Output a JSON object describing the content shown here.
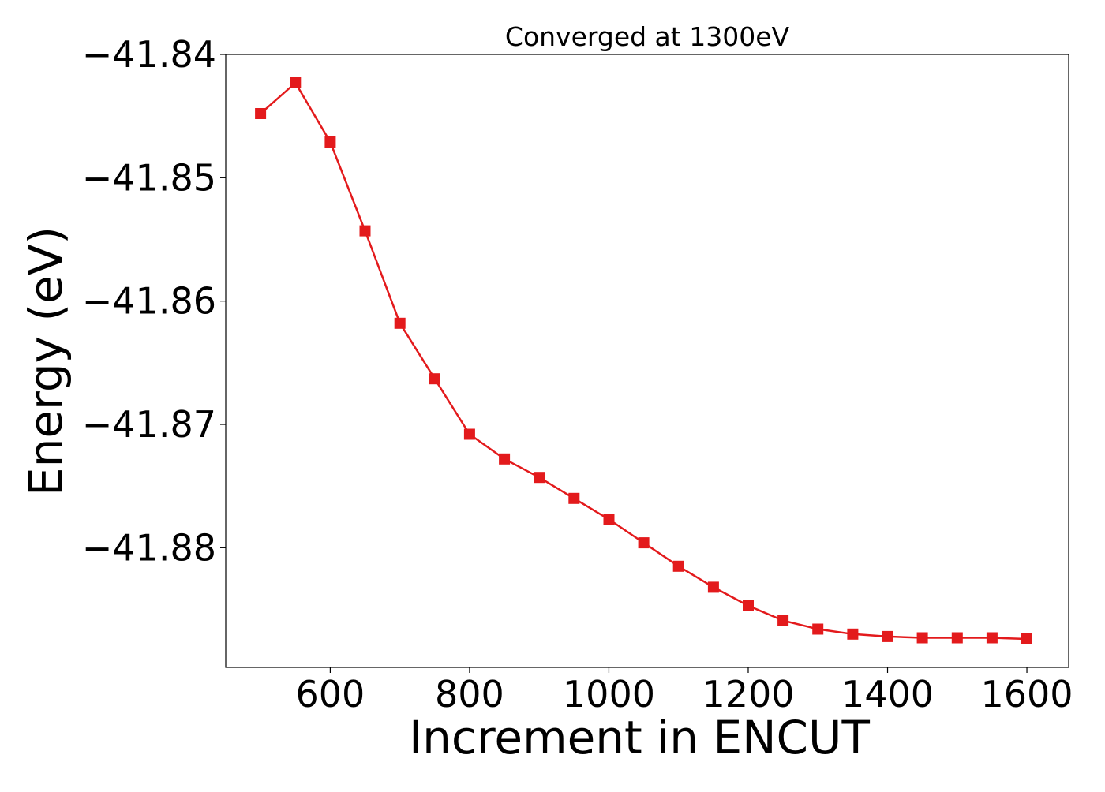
{
  "chart_data": {
    "type": "line",
    "title": "Converged at 1300eV",
    "xlabel": "Increment in ENCUT",
    "ylabel": "Energy (eV)",
    "xlim": [
      450,
      1660
    ],
    "ylim": [
      -41.8897,
      -41.84
    ],
    "x_ticks": [
      600,
      800,
      1000,
      1200,
      1400,
      1600
    ],
    "x_tick_labels": [
      "600",
      "800",
      "1000",
      "1200",
      "1400",
      "1600"
    ],
    "y_ticks": [
      -41.84,
      -41.85,
      -41.86,
      -41.87,
      -41.88
    ],
    "y_tick_labels": [
      "−41.84",
      "−41.85",
      "−41.86",
      "−41.87",
      "−41.88"
    ],
    "grid": false,
    "series": [
      {
        "color": "#e31a1c",
        "marker": "square",
        "x": [
          500,
          550,
          600,
          650,
          700,
          750,
          800,
          850,
          900,
          950,
          1000,
          1050,
          1100,
          1150,
          1200,
          1250,
          1300,
          1350,
          1400,
          1450,
          1500,
          1550,
          1600
        ],
        "y": [
          -41.8448,
          -41.8423,
          -41.8471,
          -41.8543,
          -41.8618,
          -41.8663,
          -41.8708,
          -41.8728,
          -41.8743,
          -41.876,
          -41.8777,
          -41.8796,
          -41.8815,
          -41.8832,
          -41.8847,
          -41.8859,
          -41.8866,
          -41.887,
          -41.8872,
          -41.8873,
          -41.8873,
          -41.8873,
          -41.8874
        ]
      }
    ]
  }
}
